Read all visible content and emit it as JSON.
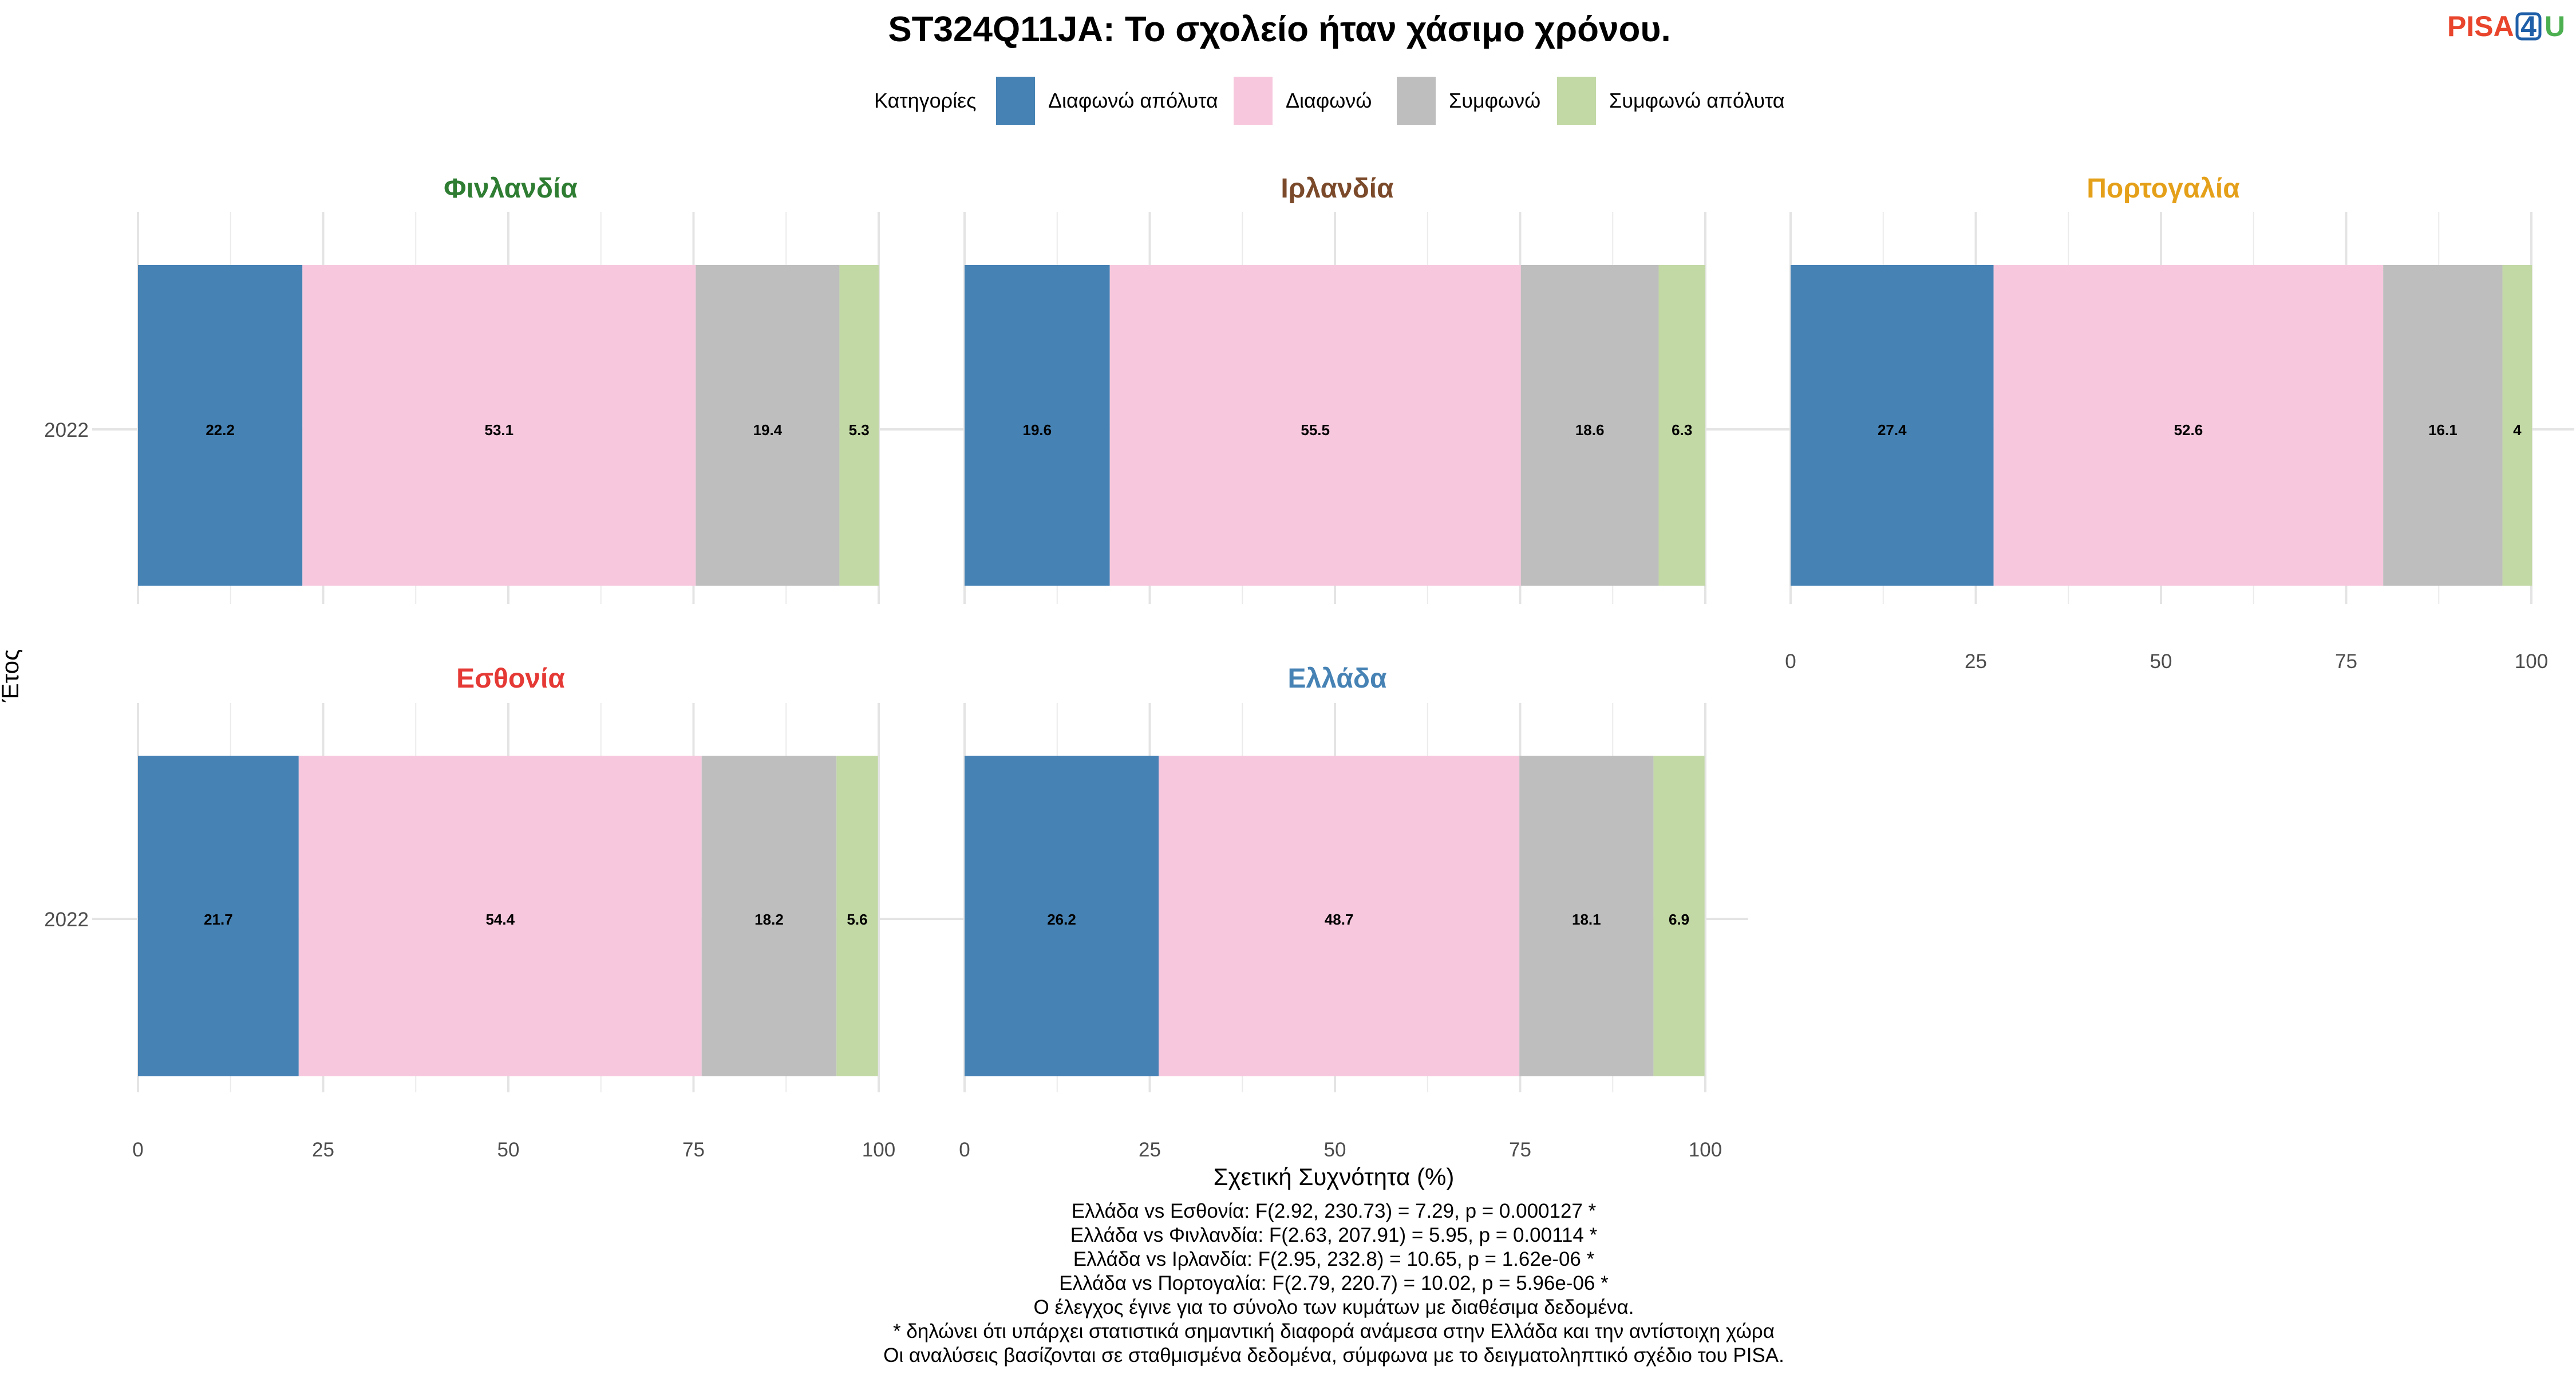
{
  "chart_data": {
    "type": "bar",
    "orientation": "horizontal-stacked",
    "title": "ST324Q11JA: Το σχολείο ήταν χάσιμο χρόνου.",
    "xlabel": "Σχετική Συχνότητα (%)",
    "ylabel": "Έτος",
    "xlim": [
      0,
      100
    ],
    "x_ticks": [
      "0",
      "25",
      "50",
      "75",
      "100"
    ],
    "legend": {
      "title": "Κατηγορίες",
      "position": "top",
      "items": [
        {
          "label": "Διαφωνώ απόλυτα",
          "color": "#4682B4"
        },
        {
          "label": "Διαφωνώ",
          "color": "#F7C8DD"
        },
        {
          "label": "Συμφωνώ",
          "color": "#BEBEBE"
        },
        {
          "label": "Συμφωνώ απόλυτα",
          "color": "#C2D8A5"
        }
      ]
    },
    "panels": [
      {
        "name": "Φινλανδία",
        "color": "#2E7D32",
        "year": "2022",
        "values": [
          22.2,
          53.1,
          19.4,
          5.3
        ],
        "labels": [
          "22.2",
          "53.1",
          "19.4",
          "5.3"
        ]
      },
      {
        "name": "Ιρλανδία",
        "color": "#7B4A2A",
        "year": "2022",
        "values": [
          19.6,
          55.5,
          18.6,
          6.3
        ],
        "labels": [
          "19.6",
          "55.5",
          "18.6",
          "6.3"
        ]
      },
      {
        "name": "Πορτογαλία",
        "color": "#E5A01A",
        "year": "2022",
        "values": [
          27.4,
          52.6,
          16.1,
          4
        ],
        "labels": [
          "27.4",
          "52.6",
          "16.1",
          "4"
        ]
      },
      {
        "name": "Εσθονία",
        "color": "#E53935",
        "year": "2022",
        "values": [
          21.7,
          54.4,
          18.2,
          5.6
        ],
        "labels": [
          "21.7",
          "54.4",
          "18.2",
          "5.6"
        ]
      },
      {
        "name": "Ελλάδα",
        "color": "#4682B4",
        "year": "2022",
        "values": [
          26.2,
          48.7,
          18.1,
          6.9
        ],
        "labels": [
          "26.2",
          "48.7",
          "18.1",
          "6.9"
        ]
      }
    ],
    "grid": true
  },
  "notes": [
    "Ελλάδα vs Εσθονία: F(2.92, 230.73) = 7.29, p = 0.000127 *",
    "Ελλάδα vs Φινλανδία: F(2.63, 207.91) = 5.95, p = 0.00114 *",
    "Ελλάδα vs Ιρλανδία: F(2.95, 232.8) = 10.65, p = 1.62e-06 *",
    "Ελλάδα vs Πορτογαλία: F(2.79, 220.7) = 10.02, p = 5.96e-06 *",
    "Ο έλεγχος έγινε για το σύνολο των κυμάτων με διαθέσιμα δεδομένα.",
    "* δηλώνει ότι υπάρχει στατιστικά σημαντική διαφορά ανάμεσα στην Ελλάδα και την αντίστοιχη χώρα",
    "Οι αναλύσεις βασίζονται σε σταθμισμένα δεδομένα, σύμφωνα με το δειγματοληπτικό σχέδιο του PISA."
  ],
  "logo": {
    "text_a": "PISA",
    "text_b": "4",
    "text_c": "U",
    "color_a": "#E8452C",
    "color_b": "#1F5FA8",
    "color_c": "#4CAF50"
  }
}
